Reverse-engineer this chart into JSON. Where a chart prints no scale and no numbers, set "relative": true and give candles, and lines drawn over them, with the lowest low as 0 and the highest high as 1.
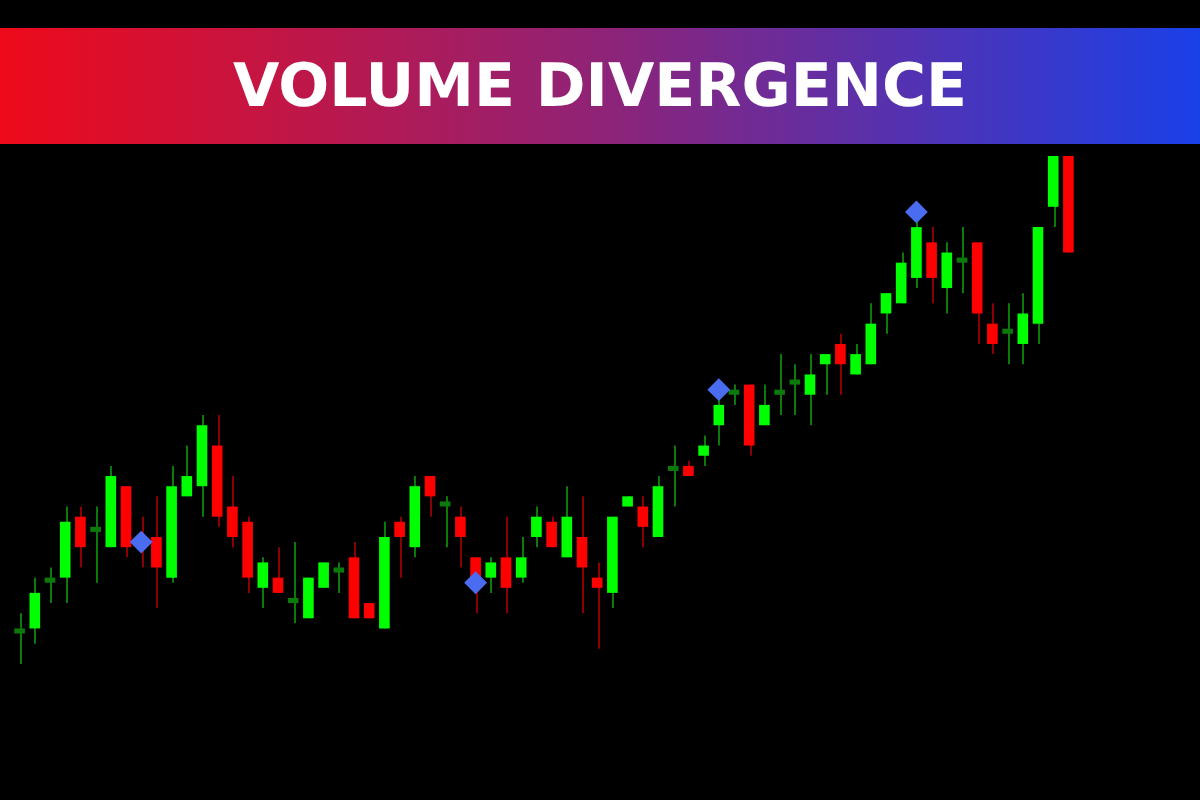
{
  "chart_data": {
    "type": "candlestick",
    "title": "VOLUME DIVERGENCE",
    "relative": true,
    "marker": "diamond",
    "categories": [
      null,
      null,
      null,
      null,
      null,
      null,
      null,
      null,
      null,
      null,
      null,
      null,
      null,
      null,
      null,
      null,
      null,
      null,
      null,
      null,
      null,
      null,
      null,
      null,
      null,
      null,
      null,
      null,
      null,
      null,
      null,
      null,
      null,
      null,
      null,
      null,
      null,
      null,
      null,
      null,
      null,
      null,
      null,
      null,
      null,
      null,
      null,
      null,
      null,
      null,
      null,
      null,
      null,
      null,
      null,
      null,
      null,
      null,
      null,
      null,
      null,
      null,
      null,
      null,
      null,
      null,
      null,
      null,
      null,
      null
    ],
    "ohlc": [
      [
        0.06,
        0.1,
        0,
        0.07
      ],
      [
        0.07,
        0.17,
        0.04,
        0.14
      ],
      [
        0.16,
        0.19,
        0.12,
        0.17
      ],
      [
        0.17,
        0.31,
        0.12,
        0.28
      ],
      [
        0.29,
        0.31,
        0.19,
        0.23
      ],
      [
        0.26,
        0.31,
        0.16,
        0.27
      ],
      [
        0.23,
        0.39,
        0.23,
        0.37
      ],
      [
        0.35,
        0.35,
        0.21,
        0.23
      ],
      [
        0.25,
        0.29,
        0.19,
        0.23
      ],
      [
        0.25,
        0.33,
        0.11,
        0.19
      ],
      [
        0.17,
        0.39,
        0.16,
        0.35
      ],
      [
        0.33,
        0.43,
        0.33,
        0.37
      ],
      [
        0.35,
        0.49,
        0.29,
        0.47
      ],
      [
        0.43,
        0.49,
        0.27,
        0.29
      ],
      [
        0.31,
        0.37,
        0.23,
        0.25
      ],
      [
        0.28,
        0.29,
        0.14,
        0.17
      ],
      [
        0.15,
        0.21,
        0.11,
        0.2
      ],
      [
        0.17,
        0.23,
        0.14,
        0.14
      ],
      [
        0.12,
        0.24,
        0.08,
        0.13
      ],
      [
        0.09,
        0.17,
        0.09,
        0.17
      ],
      [
        0.15,
        0.2,
        0.15,
        0.2
      ],
      [
        0.18,
        0.2,
        0.14,
        0.19
      ],
      [
        0.21,
        0.24,
        0.09,
        0.09
      ],
      [
        0.12,
        0.12,
        0.09,
        0.09
      ],
      [
        0.07,
        0.28,
        0.07,
        0.25
      ],
      [
        0.28,
        0.29,
        0.17,
        0.25
      ],
      [
        0.23,
        0.37,
        0.21,
        0.35
      ],
      [
        0.37,
        0.37,
        0.29,
        0.33
      ],
      [
        0.31,
        0.33,
        0.23,
        0.32
      ],
      [
        0.29,
        0.31,
        0.19,
        0.25
      ],
      [
        0.21,
        0.21,
        0.1,
        0.16
      ],
      [
        0.17,
        0.21,
        0.14,
        0.2
      ],
      [
        0.21,
        0.29,
        0.1,
        0.15
      ],
      [
        0.17,
        0.25,
        0.16,
        0.21
      ],
      [
        0.25,
        0.31,
        0.23,
        0.29
      ],
      [
        0.28,
        0.29,
        0.23,
        0.23
      ],
      [
        0.21,
        0.35,
        0.21,
        0.29
      ],
      [
        0.25,
        0.33,
        0.1,
        0.19
      ],
      [
        0.17,
        0.2,
        0.03,
        0.15
      ],
      [
        0.14,
        0.29,
        0.11,
        0.29
      ],
      [
        0.31,
        0.33,
        0.31,
        0.33
      ],
      [
        0.31,
        0.33,
        0.23,
        0.27
      ],
      [
        0.25,
        0.37,
        0.25,
        0.35
      ],
      [
        0.38,
        0.43,
        0.31,
        0.39
      ],
      [
        0.39,
        0.4,
        0.37,
        0.37
      ],
      [
        0.41,
        0.45,
        0.39,
        0.43
      ],
      [
        0.47,
        0.52,
        0.43,
        0.51
      ],
      [
        0.53,
        0.55,
        0.51,
        0.54
      ],
      [
        0.55,
        0.55,
        0.41,
        0.43
      ],
      [
        0.47,
        0.55,
        0.47,
        0.51
      ],
      [
        0.53,
        0.61,
        0.49,
        0.54
      ],
      [
        0.55,
        0.59,
        0.49,
        0.56
      ],
      [
        0.53,
        0.61,
        0.47,
        0.57
      ],
      [
        0.59,
        0.61,
        0.53,
        0.61
      ],
      [
        0.63,
        0.65,
        0.53,
        0.59
      ],
      [
        0.57,
        0.63,
        0.57,
        0.61
      ],
      [
        0.59,
        0.71,
        0.59,
        0.67
      ],
      [
        0.69,
        0.73,
        0.65,
        0.73
      ],
      [
        0.71,
        0.81,
        0.71,
        0.79
      ],
      [
        0.76,
        0.88,
        0.74,
        0.86
      ],
      [
        0.83,
        0.86,
        0.71,
        0.76
      ],
      [
        0.74,
        0.83,
        0.69,
        0.81
      ],
      [
        0.79,
        0.86,
        0.73,
        0.8
      ],
      [
        0.83,
        0.83,
        0.63,
        0.69
      ],
      [
        0.67,
        0.71,
        0.61,
        0.63
      ],
      [
        0.65,
        0.71,
        0.59,
        0.66
      ],
      [
        0.63,
        0.73,
        0.59,
        0.69
      ],
      [
        0.67,
        0.86,
        0.63,
        0.86
      ],
      [
        0.9,
        1,
        0.86,
        1
      ],
      [
        1,
        1,
        0.81,
        0.81
      ]
    ],
    "colors": [
      "#0b7a0b",
      "#00ff00",
      "#0b7a0b",
      "#00ff00",
      "#ff0000",
      "#0b7a0b",
      "#00ff00",
      "#ff0000",
      "#ff0000",
      "#ff0000",
      "#00ff00",
      "#00ff00",
      "#00ff00",
      "#ff0000",
      "#ff0000",
      "#ff0000",
      "#00ff00",
      "#ff0000",
      "#0b7a0b",
      "#00ff00",
      "#00ff00",
      "#0b7a0b",
      "#ff0000",
      "#ff0000",
      "#00ff00",
      "#ff0000",
      "#00ff00",
      "#ff0000",
      "#0b7a0b",
      "#ff0000",
      "#ff0000",
      "#00ff00",
      "#ff0000",
      "#00ff00",
      "#00ff00",
      "#ff0000",
      "#00ff00",
      "#ff0000",
      "#ff0000",
      "#00ff00",
      "#00ff00",
      "#ff0000",
      "#00ff00",
      "#0b7a0b",
      "#ff0000",
      "#00ff00",
      "#00ff00",
      "#0b7a0b",
      "#ff0000",
      "#00ff00",
      "#0b7a0b",
      "#0b7a0b",
      "#00ff00",
      "#00ff00",
      "#ff0000",
      "#00ff00",
      "#00ff00",
      "#00ff00",
      "#00ff00",
      "#00ff00",
      "#ff0000",
      "#00ff00",
      "#0b7a0b",
      "#ff0000",
      "#ff0000",
      "#0b7a0b",
      "#00ff00",
      "#00ff00",
      "#00ff00",
      "#ff0000"
    ],
    "series": [
      {
        "type": "scatter",
        "color": "#4a6cf0",
        "values": [
          null,
          null,
          null,
          null,
          null,
          null,
          null,
          null,
          0.24,
          null,
          null,
          null,
          null,
          null,
          null,
          null,
          null,
          null,
          null,
          null,
          null,
          null,
          null,
          null,
          null,
          null,
          null,
          null,
          null,
          null,
          0.16,
          null,
          null,
          null,
          null,
          null,
          null,
          null,
          null,
          null,
          null,
          null,
          null,
          null,
          null,
          null,
          0.54,
          null,
          null,
          null,
          null,
          null,
          null,
          null,
          null,
          null,
          null,
          null,
          null,
          0.89,
          null,
          null,
          null,
          null,
          null,
          null,
          null,
          null,
          null,
          null
        ]
      }
    ]
  }
}
